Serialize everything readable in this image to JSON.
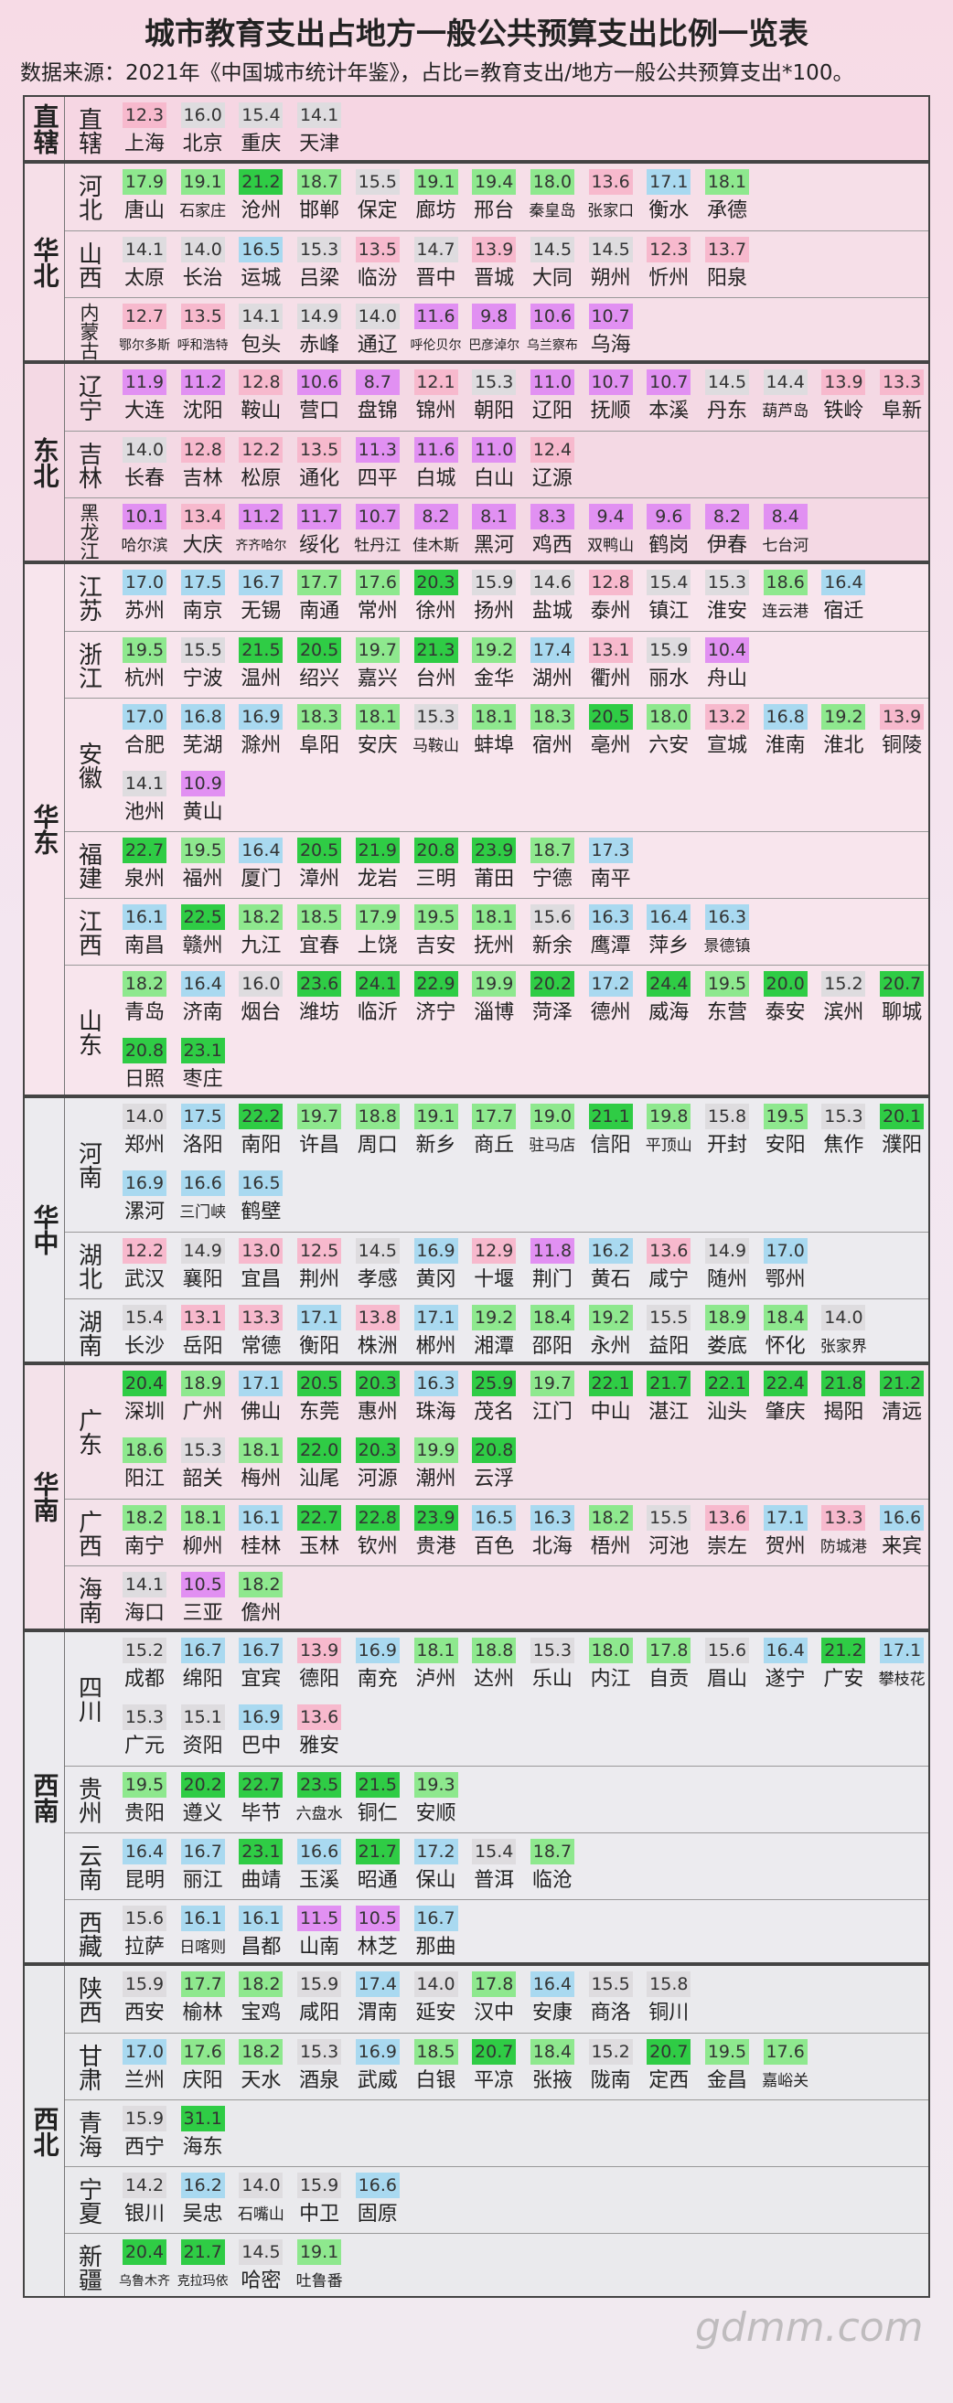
{
  "title": "城市教育支出占地方一般公共预算支出比例一览表",
  "subtitle": "数据来源：2021年《中国城市统计年鉴》，占比=教育支出/地方一般公共预算支出*100。",
  "watermark": "gdmm.com",
  "regions": [
    {
      "name": "直辖",
      "provinces": [
        {
          "name": "直辖",
          "cities": [
            "上海",
            "北京",
            "重庆",
            "天津"
          ],
          "values": [
            "12.3",
            "16.0",
            "15.4",
            "14.1"
          ]
        }
      ]
    },
    {
      "name": "华北",
      "provinces": [
        {
          "name": "河北",
          "cities": [
            "唐山",
            "石家庄",
            "沧州",
            "邯郸",
            "保定",
            "廊坊",
            "邢台",
            "秦皇岛",
            "张家口",
            "衡水",
            "承德"
          ],
          "values": [
            "17.9",
            "19.1",
            "21.2",
            "18.7",
            "15.5",
            "19.1",
            "19.4",
            "18.0",
            "13.6",
            "17.1",
            "18.1"
          ]
        },
        {
          "name": "山西",
          "cities": [
            "太原",
            "长治",
            "运城",
            "吕梁",
            "临汾",
            "晋中",
            "晋城",
            "大同",
            "朔州",
            "忻州",
            "阳泉"
          ],
          "values": [
            "14.1",
            "14.0",
            "16.5",
            "15.3",
            "13.5",
            "14.7",
            "13.9",
            "14.5",
            "14.5",
            "12.3",
            "13.7"
          ]
        },
        {
          "name": "内蒙古",
          "cities": [
            "鄂尔多斯",
            "呼和浩特",
            "包头",
            "赤峰",
            "通辽",
            "呼伦贝尔",
            "巴彦淖尔",
            "乌兰察布",
            "乌海"
          ],
          "values": [
            "12.7",
            "13.5",
            "14.1",
            "14.9",
            "14.0",
            "11.6",
            "9.8",
            "10.6",
            "10.7"
          ]
        }
      ]
    },
    {
      "name": "东北",
      "provinces": [
        {
          "name": "辽宁",
          "cities": [
            "大连",
            "沈阳",
            "鞍山",
            "营口",
            "盘锦",
            "锦州",
            "朝阳",
            "辽阳",
            "抚顺",
            "本溪",
            "丹东",
            "葫芦岛",
            "铁岭",
            "阜新"
          ],
          "values": [
            "11.9",
            "11.2",
            "12.8",
            "10.6",
            "8.7",
            "12.1",
            "15.3",
            "11.0",
            "10.7",
            "10.7",
            "14.5",
            "14.4",
            "13.9",
            "13.3"
          ]
        },
        {
          "name": "吉林",
          "cities": [
            "长春",
            "吉林",
            "松原",
            "通化",
            "四平",
            "白城",
            "白山",
            "辽源"
          ],
          "values": [
            "14.0",
            "12.8",
            "12.2",
            "13.5",
            "11.3",
            "11.6",
            "11.0",
            "12.4"
          ]
        },
        {
          "name": "黑龙江",
          "cities": [
            "哈尔滨",
            "大庆",
            "齐齐哈尔",
            "绥化",
            "牡丹江",
            "佳木斯",
            "黑河",
            "鸡西",
            "双鸭山",
            "鹤岗",
            "伊春",
            "七台河"
          ],
          "values": [
            "10.1",
            "13.4",
            "11.2",
            "11.7",
            "10.7",
            "8.2",
            "8.1",
            "8.3",
            "9.4",
            "9.6",
            "8.2",
            "8.4"
          ]
        }
      ]
    },
    {
      "name": "华东",
      "provinces": [
        {
          "name": "江苏",
          "cities": [
            "苏州",
            "南京",
            "无锡",
            "南通",
            "常州",
            "徐州",
            "扬州",
            "盐城",
            "泰州",
            "镇江",
            "淮安",
            "连云港",
            "宿迁"
          ],
          "values": [
            "17.0",
            "17.5",
            "16.7",
            "17.7",
            "17.6",
            "20.3",
            "15.9",
            "14.6",
            "12.8",
            "15.4",
            "15.3",
            "18.6",
            "16.4"
          ]
        },
        {
          "name": "浙江",
          "cities": [
            "杭州",
            "宁波",
            "温州",
            "绍兴",
            "嘉兴",
            "台州",
            "金华",
            "湖州",
            "衢州",
            "丽水",
            "舟山"
          ],
          "values": [
            "19.5",
            "15.5",
            "21.5",
            "20.5",
            "19.7",
            "21.3",
            "19.2",
            "17.4",
            "13.1",
            "15.9",
            "10.4"
          ]
        },
        {
          "name": "安徽",
          "cities": [
            "合肥",
            "芜湖",
            "滁州",
            "阜阳",
            "安庆",
            "马鞍山",
            "蚌埠",
            "宿州",
            "亳州",
            "六安",
            "宣城",
            "淮南",
            "淮北",
            "铜陵",
            "池州",
            "黄山"
          ],
          "values": [
            "17.0",
            "16.8",
            "16.9",
            "18.3",
            "18.1",
            "15.3",
            "18.1",
            "18.3",
            "20.5",
            "18.0",
            "13.2",
            "16.8",
            "19.2",
            "13.9",
            "14.1",
            "10.9"
          ]
        },
        {
          "name": "福建",
          "cities": [
            "泉州",
            "福州",
            "厦门",
            "漳州",
            "龙岩",
            "三明",
            "莆田",
            "宁德",
            "南平"
          ],
          "values": [
            "22.7",
            "19.5",
            "16.4",
            "20.5",
            "21.9",
            "20.8",
            "23.9",
            "18.7",
            "17.3"
          ]
        },
        {
          "name": "江西",
          "cities": [
            "南昌",
            "赣州",
            "九江",
            "宜春",
            "上饶",
            "吉安",
            "抚州",
            "新余",
            "鹰潭",
            "萍乡",
            "景德镇"
          ],
          "values": [
            "16.1",
            "22.5",
            "18.2",
            "18.5",
            "17.9",
            "19.5",
            "18.1",
            "15.6",
            "16.3",
            "16.4",
            "16.3"
          ]
        },
        {
          "name": "山东",
          "cities": [
            "青岛",
            "济南",
            "烟台",
            "潍坊",
            "临沂",
            "济宁",
            "淄博",
            "菏泽",
            "德州",
            "威海",
            "东营",
            "泰安",
            "滨州",
            "聊城",
            "日照",
            "枣庄"
          ],
          "values": [
            "18.2",
            "16.4",
            "16.0",
            "23.6",
            "24.1",
            "22.9",
            "19.9",
            "20.2",
            "17.2",
            "24.4",
            "19.5",
            "20.0",
            "15.2",
            "20.7",
            "20.8",
            "23.1"
          ]
        }
      ]
    },
    {
      "name": "华中",
      "provinces": [
        {
          "name": "河南",
          "cities": [
            "郑州",
            "洛阳",
            "南阳",
            "许昌",
            "周口",
            "新乡",
            "商丘",
            "驻马店",
            "信阳",
            "平顶山",
            "开封",
            "安阳",
            "焦作",
            "濮阳",
            "漯河",
            "三门峡",
            "鹤壁"
          ],
          "values": [
            "14.0",
            "17.5",
            "22.2",
            "19.7",
            "18.8",
            "19.1",
            "17.7",
            "19.0",
            "21.1",
            "19.8",
            "15.8",
            "19.5",
            "15.3",
            "20.1",
            "16.9",
            "16.6",
            "16.5"
          ]
        },
        {
          "name": "湖北",
          "cities": [
            "武汉",
            "襄阳",
            "宜昌",
            "荆州",
            "孝感",
            "黄冈",
            "十堰",
            "荆门",
            "黄石",
            "咸宁",
            "随州",
            "鄂州"
          ],
          "values": [
            "12.2",
            "14.9",
            "13.0",
            "12.5",
            "14.5",
            "16.9",
            "12.9",
            "11.8",
            "16.2",
            "13.6",
            "14.9",
            "17.0"
          ]
        },
        {
          "name": "湖南",
          "cities": [
            "长沙",
            "岳阳",
            "常德",
            "衡阳",
            "株洲",
            "郴州",
            "湘潭",
            "邵阳",
            "永州",
            "益阳",
            "娄底",
            "怀化",
            "张家界"
          ],
          "values": [
            "15.4",
            "13.1",
            "13.3",
            "17.1",
            "13.8",
            "17.1",
            "19.2",
            "18.4",
            "19.2",
            "15.5",
            "18.9",
            "18.4",
            "14.0"
          ]
        }
      ]
    },
    {
      "name": "华南",
      "provinces": [
        {
          "name": "广东",
          "cities": [
            "深圳",
            "广州",
            "佛山",
            "东莞",
            "惠州",
            "珠海",
            "茂名",
            "江门",
            "中山",
            "湛江",
            "汕头",
            "肇庆",
            "揭阳",
            "清远",
            "阳江",
            "韶关",
            "梅州",
            "汕尾",
            "河源",
            "潮州",
            "云浮"
          ],
          "values": [
            "20.4",
            "18.9",
            "17.1",
            "20.5",
            "20.3",
            "16.3",
            "25.9",
            "19.7",
            "22.1",
            "21.7",
            "22.1",
            "22.4",
            "21.8",
            "21.2",
            "18.6",
            "15.3",
            "18.1",
            "22.0",
            "20.3",
            "19.9",
            "20.8"
          ]
        },
        {
          "name": "广西",
          "cities": [
            "南宁",
            "柳州",
            "桂林",
            "玉林",
            "钦州",
            "贵港",
            "百色",
            "北海",
            "梧州",
            "河池",
            "崇左",
            "贺州",
            "防城港",
            "来宾"
          ],
          "values": [
            "18.2",
            "18.1",
            "16.1",
            "22.7",
            "22.8",
            "23.9",
            "16.5",
            "16.3",
            "18.2",
            "15.5",
            "13.6",
            "17.1",
            "13.3",
            "16.6"
          ]
        },
        {
          "name": "海南",
          "cities": [
            "海口",
            "三亚",
            "儋州"
          ],
          "values": [
            "14.1",
            "10.5",
            "18.2"
          ]
        }
      ]
    },
    {
      "name": "西南",
      "provinces": [
        {
          "name": "四川",
          "cities": [
            "成都",
            "绵阳",
            "宜宾",
            "德阳",
            "南充",
            "泸州",
            "达州",
            "乐山",
            "内江",
            "自贡",
            "眉山",
            "遂宁",
            "广安",
            "攀枝花",
            "广元",
            "资阳",
            "巴中",
            "雅安"
          ],
          "values": [
            "15.2",
            "16.7",
            "16.7",
            "13.9",
            "16.9",
            "18.1",
            "18.8",
            "15.3",
            "18.0",
            "17.8",
            "15.6",
            "16.4",
            "21.2",
            "17.1",
            "15.3",
            "15.1",
            "16.9",
            "13.6"
          ]
        },
        {
          "name": "贵州",
          "cities": [
            "贵阳",
            "遵义",
            "毕节",
            "六盘水",
            "铜仁",
            "安顺"
          ],
          "values": [
            "19.5",
            "20.2",
            "22.7",
            "23.5",
            "21.5",
            "19.3"
          ]
        },
        {
          "name": "云南",
          "cities": [
            "昆明",
            "丽江",
            "曲靖",
            "玉溪",
            "昭通",
            "保山",
            "普洱",
            "临沧"
          ],
          "values": [
            "16.4",
            "16.7",
            "23.1",
            "16.6",
            "21.7",
            "17.2",
            "15.4",
            "18.7"
          ]
        },
        {
          "name": "西藏",
          "cities": [
            "拉萨",
            "日喀则",
            "昌都",
            "山南",
            "林芝",
            "那曲"
          ],
          "values": [
            "15.6",
            "16.1",
            "16.1",
            "11.5",
            "10.5",
            "16.7"
          ]
        }
      ]
    },
    {
      "name": "西北",
      "provinces": [
        {
          "name": "陕西",
          "cities": [
            "西安",
            "榆林",
            "宝鸡",
            "咸阳",
            "渭南",
            "延安",
            "汉中",
            "安康",
            "商洛",
            "铜川"
          ],
          "values": [
            "15.9",
            "17.7",
            "18.2",
            "15.9",
            "17.4",
            "14.0",
            "17.8",
            "16.4",
            "15.5",
            "15.8"
          ]
        },
        {
          "name": "甘肃",
          "cities": [
            "兰州",
            "庆阳",
            "天水",
            "酒泉",
            "武威",
            "白银",
            "平凉",
            "张掖",
            "陇南",
            "定西",
            "金昌",
            "嘉峪关"
          ],
          "values": [
            "17.0",
            "17.6",
            "18.2",
            "15.3",
            "16.9",
            "18.5",
            "20.7",
            "18.4",
            "15.2",
            "20.7",
            "19.5",
            "17.6"
          ]
        },
        {
          "name": "青海",
          "cities": [
            "西宁",
            "海东"
          ],
          "values": [
            "15.9",
            "31.1"
          ]
        },
        {
          "name": "宁夏",
          "cities": [
            "银川",
            "吴忠",
            "石嘴山",
            "中卫",
            "固原"
          ],
          "values": [
            "14.2",
            "16.2",
            "14.0",
            "15.9",
            "16.6"
          ]
        },
        {
          "name": "新疆",
          "cities": [
            "乌鲁木齐",
            "克拉玛依",
            "哈密",
            "吐鲁番"
          ],
          "values": [
            "20.4",
            "21.7",
            "14.5",
            "19.1"
          ]
        }
      ]
    }
  ]
}
